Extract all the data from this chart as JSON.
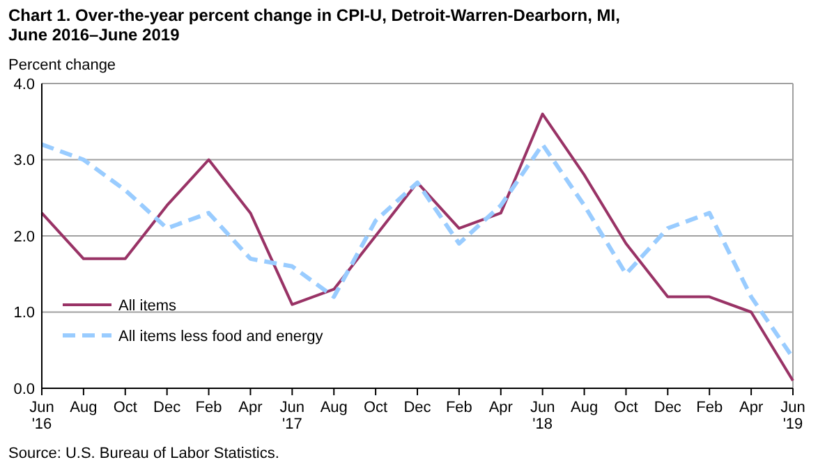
{
  "chart_data": {
    "type": "line",
    "title": "Chart 1. Over-the-year percent change in CPI-U, Detroit-Warren-Dearborn, MI, June 2016–June 2019",
    "ylabel": "Percent change",
    "categories": [
      "Jun\n'16",
      "Aug",
      "Oct",
      "Dec",
      "Feb",
      "Apr",
      "Jun\n'17",
      "Aug",
      "Oct",
      "Dec",
      "Feb",
      "Apr",
      "Jun\n'18",
      "Aug",
      "Oct",
      "Dec",
      "Feb",
      "Apr",
      "Jun\n'19"
    ],
    "series": [
      {
        "name": "All items",
        "color": "#993366",
        "line_style": "solid",
        "values": [
          2.3,
          1.7,
          1.7,
          2.4,
          3.0,
          2.3,
          1.1,
          1.3,
          2.0,
          2.7,
          2.1,
          2.3,
          3.6,
          2.8,
          1.9,
          1.2,
          1.2,
          1.0,
          0.1
        ]
      },
      {
        "name": "All items less food and energy",
        "color": "#99ccff",
        "line_style": "dashed",
        "values": [
          3.2,
          3.0,
          2.6,
          2.1,
          2.3,
          1.7,
          1.6,
          1.2,
          2.2,
          2.7,
          1.9,
          2.4,
          3.2,
          2.4,
          1.5,
          2.1,
          2.3,
          1.2,
          0.4
        ]
      }
    ],
    "ylim": [
      0,
      4
    ],
    "yticks": [
      {
        "value": 0,
        "label": "0.0"
      },
      {
        "value": 1,
        "label": "1.0"
      },
      {
        "value": 2,
        "label": "2.0"
      },
      {
        "value": 3,
        "label": "3.0"
      },
      {
        "value": 4,
        "label": "4.0"
      }
    ],
    "grid": "y",
    "legend": "bottom left",
    "marker": "none",
    "annotations": [
      "Source: U.S. Bureau of Labor Statistics."
    ]
  }
}
